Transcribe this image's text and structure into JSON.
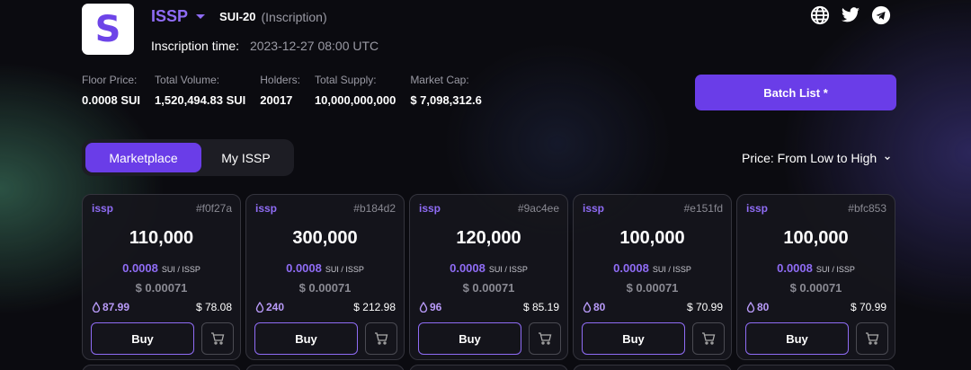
{
  "header": {
    "logo_letter": "S",
    "token_name": "ISSP",
    "standard": "SUI-20",
    "kind": "(Inscription)",
    "inscription_label": "Inscription time:",
    "inscription_time": "2023-12-27 08:00 UTC",
    "socials": [
      "globe-icon",
      "twitter-icon",
      "telegram-icon"
    ]
  },
  "stats": [
    {
      "label": "Floor Price:",
      "value": "0.0008 SUI"
    },
    {
      "label": "Total Volume:",
      "value": "1,520,494.83 SUI"
    },
    {
      "label": "Holders:",
      "value": "20017"
    },
    {
      "label": "Total Supply:",
      "value": "10,000,000,000"
    },
    {
      "label": "Market Cap:",
      "value": "$ 7,098,312.6"
    }
  ],
  "batch_label": "Batch List *",
  "tabs": [
    {
      "label": "Marketplace",
      "active": true
    },
    {
      "label": "My ISSP",
      "active": false
    }
  ],
  "sort_label": "Price: From Low to High",
  "colors": {
    "accent": "#6a3de8",
    "accent_text": "#8f6cf5"
  },
  "unit_label": "SUI / ISSP",
  "buy_label": "Buy",
  "cards": [
    {
      "ticker": "issp",
      "hash": "#f0f27a",
      "amount": "110,000",
      "price": "0.0008",
      "usd": "$ 0.00071",
      "drop": "87.99",
      "total": "$ 78.08"
    },
    {
      "ticker": "issp",
      "hash": "#b184d2",
      "amount": "300,000",
      "price": "0.0008",
      "usd": "$ 0.00071",
      "drop": "240",
      "total": "$ 212.98"
    },
    {
      "ticker": "issp",
      "hash": "#9ac4ee",
      "amount": "120,000",
      "price": "0.0008",
      "usd": "$ 0.00071",
      "drop": "96",
      "total": "$ 85.19"
    },
    {
      "ticker": "issp",
      "hash": "#e151fd",
      "amount": "100,000",
      "price": "0.0008",
      "usd": "$ 0.00071",
      "drop": "80",
      "total": "$ 70.99"
    },
    {
      "ticker": "issp",
      "hash": "#bfc853",
      "amount": "100,000",
      "price": "0.0008",
      "usd": "$ 0.00071",
      "drop": "80",
      "total": "$ 70.99"
    }
  ]
}
